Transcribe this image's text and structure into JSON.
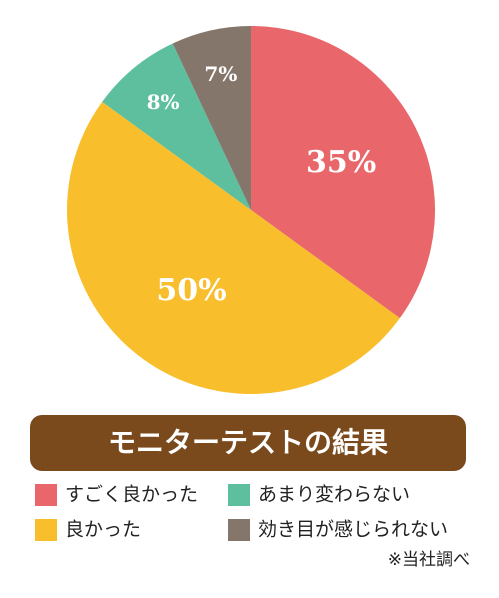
{
  "chart_data": {
    "type": "pie",
    "title": "モニターテストの結果",
    "categories": [
      "すごく良かった",
      "良かった",
      "あまり変わらない",
      "効き目が感じられない"
    ],
    "values": [
      35,
      50,
      8,
      7
    ],
    "value_labels": [
      "35%",
      "50%",
      "8%",
      "7%"
    ],
    "colors": [
      "#e9676a",
      "#f8be2c",
      "#5ebf9e",
      "#85766b"
    ],
    "note": "※当社調べ"
  }
}
